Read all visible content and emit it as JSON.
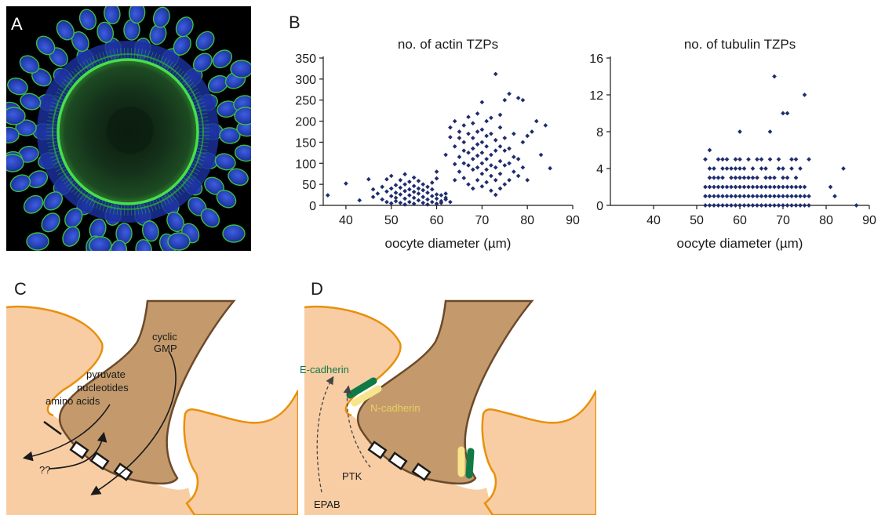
{
  "panels": {
    "a": "A",
    "b": "B",
    "c": "C",
    "d": "D"
  },
  "chart_data": [
    {
      "type": "scatter",
      "title": "no. of actin TZPs",
      "xlabel": "oocyte diameter (µm)",
      "ylabel": "",
      "xlim": [
        35,
        90
      ],
      "ylim": [
        0,
        350
      ],
      "xticks": [
        40,
        50,
        60,
        70,
        80,
        90
      ],
      "yticks": [
        0,
        50,
        100,
        150,
        200,
        250,
        300,
        350
      ],
      "marker_color": "#1f2d6e",
      "x": [
        36,
        40,
        43,
        45,
        46,
        46,
        47,
        48,
        48,
        49,
        49,
        49,
        50,
        50,
        50,
        50,
        51,
        51,
        51,
        51,
        52,
        52,
        52,
        52,
        53,
        53,
        53,
        53,
        53,
        54,
        54,
        54,
        54,
        55,
        55,
        55,
        55,
        55,
        56,
        56,
        56,
        56,
        57,
        57,
        57,
        57,
        58,
        58,
        58,
        58,
        59,
        59,
        59,
        59,
        60,
        60,
        60,
        60,
        60,
        61,
        61,
        61,
        62,
        62,
        62,
        62,
        63,
        63,
        63,
        64,
        64,
        64,
        64,
        65,
        65,
        65,
        65,
        66,
        66,
        66,
        66,
        66,
        67,
        67,
        67,
        67,
        67,
        68,
        68,
        68,
        68,
        68,
        68,
        69,
        69,
        69,
        69,
        69,
        69,
        70,
        70,
        70,
        70,
        70,
        70,
        70,
        71,
        71,
        71,
        71,
        71,
        71,
        72,
        72,
        72,
        72,
        72,
        72,
        73,
        73,
        73,
        73,
        73,
        73,
        74,
        74,
        74,
        74,
        74,
        74,
        75,
        75,
        75,
        75,
        75,
        76,
        76,
        76,
        76,
        77,
        77,
        77,
        78,
        78,
        78,
        79,
        79,
        79,
        80,
        80,
        81,
        82,
        83,
        84,
        85
      ],
      "y": [
        24,
        52,
        12,
        62,
        20,
        38,
        28,
        14,
        44,
        8,
        33,
        62,
        5,
        22,
        40,
        70,
        10,
        30,
        48,
        18,
        6,
        26,
        42,
        60,
        2,
        16,
        34,
        50,
        74,
        8,
        24,
        38,
        56,
        4,
        18,
        32,
        46,
        66,
        12,
        28,
        40,
        58,
        6,
        20,
        36,
        50,
        2,
        14,
        30,
        44,
        8,
        22,
        38,
        54,
        4,
        16,
        26,
        64,
        80,
        10,
        24,
        6,
        14,
        28,
        18,
        120,
        8,
        162,
        185,
        60,
        98,
        140,
        200,
        80,
        115,
        160,
        175,
        65,
        100,
        130,
        150,
        190,
        50,
        95,
        125,
        170,
        210,
        40,
        85,
        110,
        135,
        160,
        195,
        60,
        90,
        118,
        145,
        175,
        218,
        45,
        75,
        100,
        125,
        150,
        180,
        245,
        55,
        85,
        110,
        140,
        165,
        200,
        35,
        70,
        95,
        120,
        170,
        208,
        25,
        60,
        90,
        130,
        155,
        312,
        40,
        75,
        105,
        140,
        185,
        215,
        50,
        95,
        130,
        160,
        250,
        60,
        100,
        135,
        265,
        80,
        115,
        170,
        70,
        110,
        255,
        90,
        150,
        250,
        60,
        165,
        175,
        200,
        120,
        190,
        88
      ]
    },
    {
      "type": "scatter",
      "title": "no. of tubulin TZPs",
      "xlabel": "oocyte diameter (µm)",
      "ylabel": "",
      "xlim": [
        30,
        90
      ],
      "ylim": [
        0,
        16
      ],
      "xticks": [
        40,
        50,
        60,
        70,
        80,
        90
      ],
      "yticks": [
        0,
        4,
        8,
        12,
        16
      ],
      "marker_color": "#1f2d6e",
      "x": [
        52,
        52,
        52,
        52,
        53,
        53,
        53,
        53,
        53,
        53,
        54,
        54,
        54,
        54,
        54,
        55,
        55,
        55,
        55,
        55,
        56,
        56,
        56,
        56,
        56,
        56,
        57,
        57,
        57,
        57,
        57,
        58,
        58,
        58,
        58,
        58,
        59,
        59,
        59,
        59,
        59,
        59,
        60,
        60,
        60,
        60,
        60,
        60,
        60,
        61,
        61,
        61,
        61,
        61,
        62,
        62,
        62,
        62,
        62,
        63,
        63,
        63,
        63,
        63,
        64,
        64,
        64,
        64,
        64,
        65,
        65,
        65,
        65,
        65,
        66,
        66,
        66,
        66,
        66,
        67,
        67,
        67,
        67,
        67,
        67,
        68,
        68,
        68,
        68,
        68,
        69,
        69,
        69,
        69,
        69,
        70,
        70,
        70,
        70,
        70,
        70,
        71,
        71,
        71,
        71,
        71,
        72,
        72,
        72,
        72,
        72,
        73,
        73,
        73,
        73,
        73,
        74,
        74,
        74,
        74,
        75,
        75,
        75,
        75,
        76,
        76,
        76,
        81,
        82,
        84,
        87
      ],
      "y": [
        0,
        1,
        2,
        5,
        0,
        1,
        2,
        3,
        4,
        6,
        0,
        1,
        2,
        3,
        4,
        0,
        1,
        2,
        3,
        5,
        0,
        1,
        2,
        3,
        4,
        5,
        0,
        1,
        2,
        4,
        5,
        0,
        1,
        2,
        3,
        4,
        0,
        1,
        2,
        3,
        4,
        5,
        0,
        1,
        2,
        3,
        4,
        5,
        8,
        0,
        1,
        2,
        3,
        4,
        0,
        1,
        2,
        3,
        5,
        0,
        1,
        2,
        3,
        4,
        0,
        1,
        2,
        3,
        5,
        0,
        1,
        2,
        4,
        5,
        0,
        1,
        2,
        3,
        4,
        0,
        1,
        2,
        3,
        5,
        8,
        0,
        1,
        2,
        3,
        14,
        0,
        1,
        2,
        4,
        5,
        0,
        1,
        2,
        3,
        4,
        10,
        0,
        1,
        2,
        3,
        10,
        0,
        1,
        2,
        4,
        5,
        0,
        1,
        2,
        3,
        5,
        0,
        1,
        2,
        4,
        0,
        1,
        2,
        12,
        0,
        1,
        5,
        2,
        1,
        4,
        0
      ]
    }
  ],
  "diagram_c": {
    "label_cgmp_1": "cyclic",
    "label_cgmp_2": "GMP",
    "label_pyruvate": "pyruvate",
    "label_nucleotides": "nucleotides",
    "label_amino": "amino acids",
    "label_unknown": "??"
  },
  "diagram_d": {
    "label_ecad": "E-cadherin",
    "label_ncad": "N-cadherin",
    "label_ptk": "PTK",
    "label_epab": "EPAB",
    "ecad_color": "#0f7a45",
    "ncad_color": "#f6e58c"
  },
  "colors": {
    "cell": "#f8cda4",
    "cell_border": "#e8900c",
    "process": "#c49a6c",
    "process_border": "#6b4a2a",
    "nuclei": "#1e3fb5",
    "membrane": "#2fd63a"
  }
}
